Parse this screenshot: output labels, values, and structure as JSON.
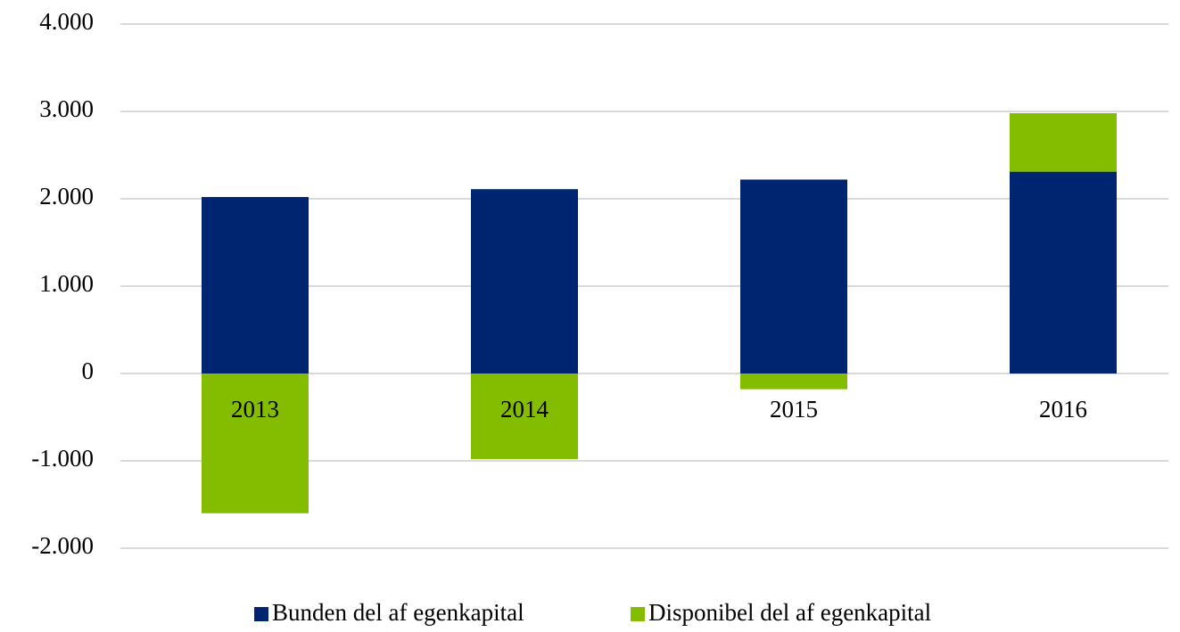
{
  "chart_data": {
    "type": "stacked_bar",
    "categories": [
      "2013",
      "2014",
      "2015",
      "2016"
    ],
    "series": [
      {
        "name": "Bunden del af egenkapital",
        "color": "#002570",
        "values": [
          2020,
          2110,
          2220,
          2310
        ]
      },
      {
        "name": "Disponibel del af egenkapital",
        "color": "#84bd00",
        "values": [
          -1600,
          -980,
          -180,
          670
        ]
      }
    ],
    "ylim": [
      -2000,
      4000
    ],
    "yticks": [
      {
        "value": -2000,
        "label": "-2.000"
      },
      {
        "value": -1000,
        "label": "-1.000"
      },
      0,
      {
        "value": 1000,
        "label": "1.000"
      },
      {
        "value": 2000,
        "label": "2.000"
      },
      {
        "value": 3000,
        "label": "3.000"
      },
      {
        "value": 4000,
        "label": "4.000"
      }
    ],
    "grid": true,
    "legend": "bottom"
  }
}
